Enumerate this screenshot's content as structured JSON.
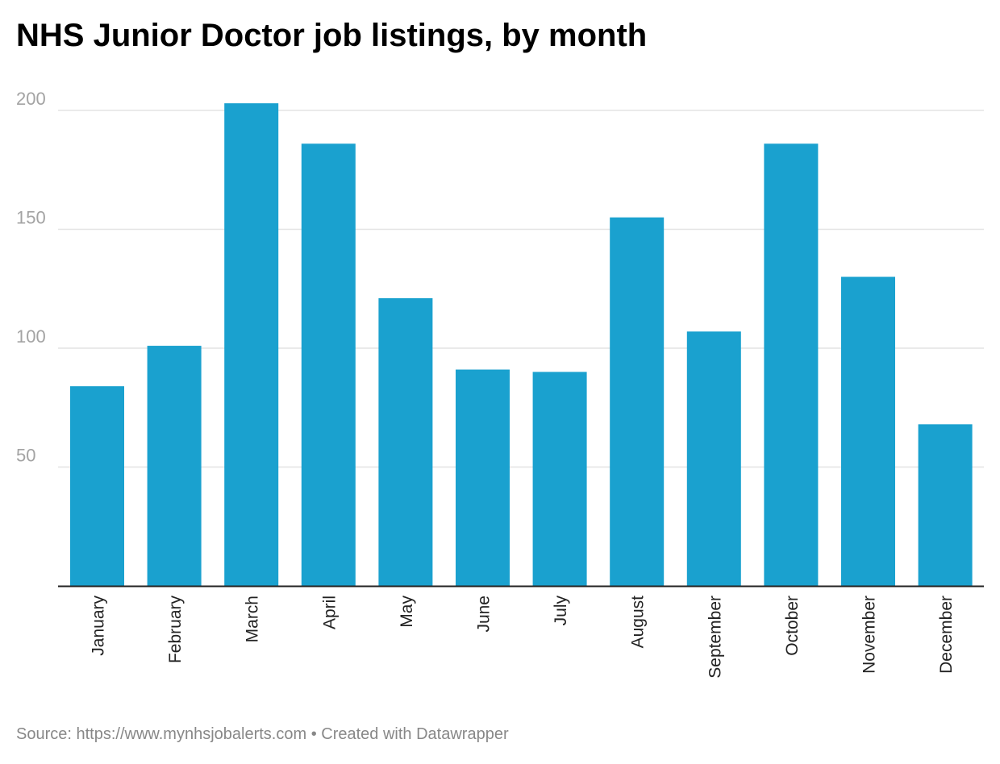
{
  "title": "NHS Junior Doctor job listings, by month",
  "footer": {
    "source_label": "Source: ",
    "source_url": "https://www.mynhsjobalerts.com",
    "separator": " • ",
    "credit": "Created with Datawrapper"
  },
  "colors": {
    "bar": "#1aa1cf",
    "grid": "#e3e3e3",
    "axis": "#222222"
  },
  "chart_data": {
    "type": "bar",
    "title": "NHS Junior Doctor job listings, by month",
    "xlabel": "",
    "ylabel": "",
    "categories": [
      "January",
      "February",
      "March",
      "April",
      "May",
      "June",
      "July",
      "August",
      "September",
      "October",
      "November",
      "December"
    ],
    "values": [
      84,
      101,
      203,
      186,
      121,
      91,
      90,
      155,
      107,
      186,
      130,
      68
    ],
    "ylim": [
      0,
      200
    ],
    "yticks": [
      50,
      100,
      150,
      200
    ],
    "grid": true,
    "legend": "none"
  }
}
